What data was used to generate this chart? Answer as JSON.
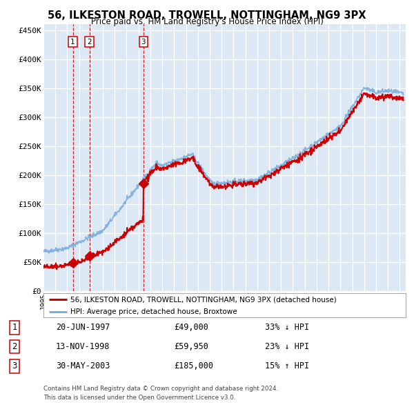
{
  "title": "56, ILKESTON ROAD, TROWELL, NOTTINGHAM, NG9 3PX",
  "subtitle": "Price paid vs. HM Land Registry's House Price Index (HPI)",
  "plot_bg_color": "#dce9f5",
  "grid_color": "#ffffff",
  "ylim": [
    0,
    460000
  ],
  "yticks": [
    0,
    50000,
    100000,
    150000,
    200000,
    250000,
    300000,
    350000,
    400000,
    450000
  ],
  "ytick_labels": [
    "£0",
    "£50K",
    "£100K",
    "£150K",
    "£200K",
    "£250K",
    "£300K",
    "£350K",
    "£400K",
    "£450K"
  ],
  "xlim_start": 1995.0,
  "xlim_end": 2025.5,
  "red_line_color": "#cc0000",
  "blue_line_color": "#7aaddb",
  "marker_color": "#cc0000",
  "dashed_line_color": "#cc0000",
  "sale_dates": [
    1997.47,
    1998.87,
    2003.41
  ],
  "sale_prices": [
    49000,
    59950,
    185000
  ],
  "legend_label_red": "56, ILKESTON ROAD, TROWELL, NOTTINGHAM, NG9 3PX (detached house)",
  "legend_label_blue": "HPI: Average price, detached house, Broxtowe",
  "table_rows": [
    [
      "1",
      "20-JUN-1997",
      "£49,000",
      "33% ↓ HPI"
    ],
    [
      "2",
      "13-NOV-1998",
      "£59,950",
      "23% ↓ HPI"
    ],
    [
      "3",
      "30-MAY-2003",
      "£185,000",
      "15% ↑ HPI"
    ]
  ],
  "footer_text": "Contains HM Land Registry data © Crown copyright and database right 2024.\nThis data is licensed under the Open Government Licence v3.0."
}
